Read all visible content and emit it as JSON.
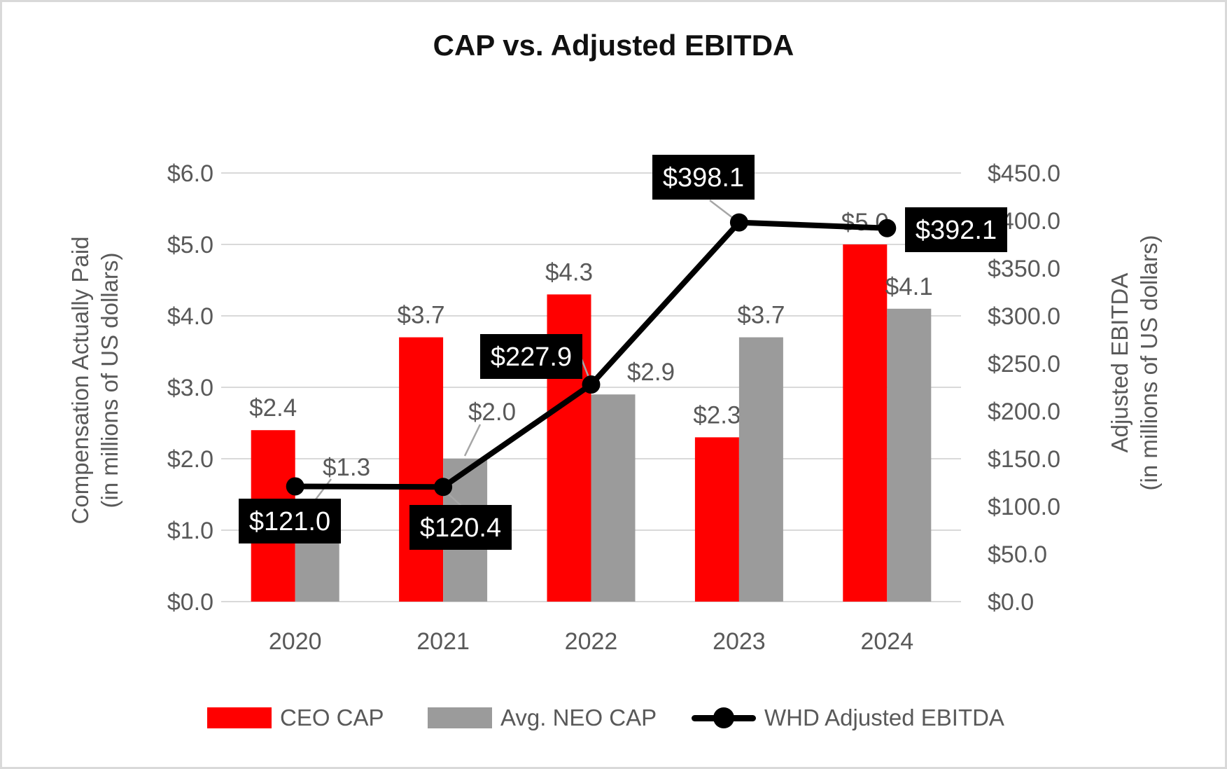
{
  "title": "CAP vs. Adjusted EBITDA",
  "colors": {
    "ceo_bar": "#FF0000",
    "neo_bar": "#9B9B9B",
    "line": "#000000",
    "label_text": "#595959",
    "tick_text": "#595959",
    "gridline": "#D9D9D9",
    "leader_line": "#A6A6A6",
    "ebitda_label_bg": "#000000",
    "ebitda_label_text": "#FFFFFF"
  },
  "chart_data": {
    "type": "bar",
    "subtype": "combo-bar-line-dual-axis",
    "title": "CAP vs. Adjusted EBITDA",
    "categories": [
      "2020",
      "2021",
      "2022",
      "2023",
      "2024"
    ],
    "series": [
      {
        "name": "CEO CAP",
        "type": "bar",
        "axis": "left",
        "color": "#FF0000",
        "values": [
          2.4,
          3.7,
          4.3,
          2.3,
          5.0
        ],
        "labels": [
          "$2.4",
          "$3.7",
          "$4.3",
          "$2.3",
          "$5.0"
        ]
      },
      {
        "name": "Avg. NEO CAP",
        "type": "bar",
        "axis": "left",
        "color": "#9B9B9B",
        "values": [
          1.3,
          2.0,
          2.9,
          3.7,
          4.1
        ],
        "labels": [
          "$1.3",
          "$2.0",
          "$2.9",
          "$3.7",
          "$4.1"
        ]
      },
      {
        "name": "WHD Adjusted EBITDA",
        "type": "line",
        "axis": "right",
        "color": "#000000",
        "values": [
          121.0,
          120.4,
          227.9,
          398.1,
          392.1
        ],
        "labels": [
          "$121.0",
          "$120.4",
          "$227.9",
          "$398.1",
          "$392.1"
        ],
        "label_style": "black-box-white-text"
      }
    ],
    "left_axis": {
      "title_line1": "Compensation Actually Paid",
      "title_line2": "(in millions of US dollars)",
      "min": 0,
      "max": 6,
      "step": 1,
      "tick_labels": [
        "$0.0",
        "$1.0",
        "$2.0",
        "$3.0",
        "$4.0",
        "$5.0",
        "$6.0"
      ]
    },
    "right_axis": {
      "title_line1": "Adjusted EBITDA",
      "title_line2": "(in millions of US dollars)",
      "min": 0,
      "max": 450,
      "step": 50,
      "tick_labels": [
        "$0.0",
        "$50.0",
        "$100.0",
        "$150.0",
        "$200.0",
        "$250.0",
        "$300.0",
        "$350.0",
        "$400.0",
        "$450.0"
      ]
    },
    "grid": true,
    "legend_position": "bottom"
  }
}
